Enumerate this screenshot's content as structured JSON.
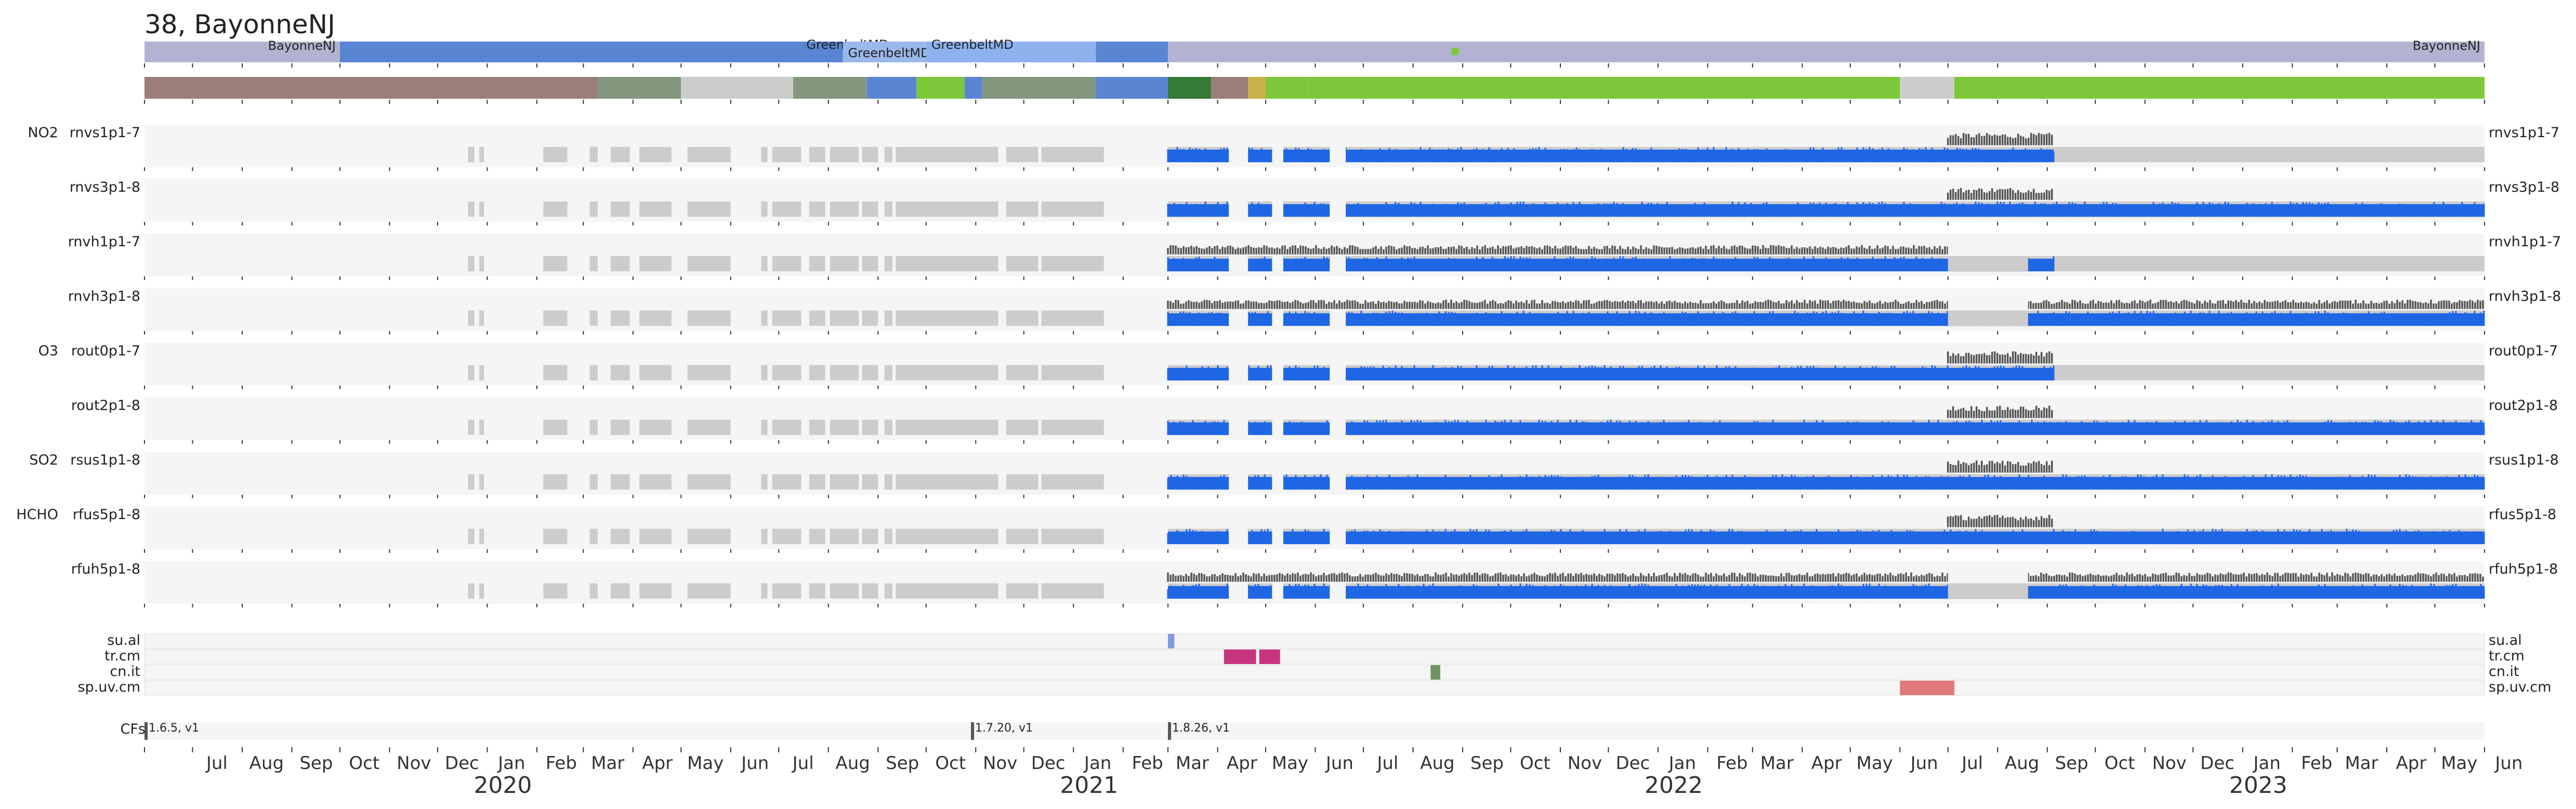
{
  "title": "38, BayonneNJ",
  "colors": {
    "panel_bg": "#f5f5f5",
    "nodata": "#cccccc",
    "blue_data": "#1f66e5",
    "dark_data": "#555555",
    "tick": "#333333"
  },
  "chart_data": {
    "type": "timeline",
    "title": "38, BayonneNJ",
    "x_range": [
      "2019-06-01",
      "2023-06-01"
    ],
    "location_track": {
      "segments": [
        {
          "start": "2019-06-01",
          "end": "2019-10-01",
          "label": "BayonneNJ",
          "color": "#b3b3d1"
        },
        {
          "start": "2019-10-01",
          "end": "2020-07-15",
          "label": "",
          "color": "#5a85d3"
        },
        {
          "start": "2020-07-15",
          "end": "2020-08-10",
          "label": "GreenbeltMD",
          "color": "#5a85d3"
        },
        {
          "start": "2020-08-10",
          "end": "2020-10-01",
          "label": "GreenbeltMD",
          "color": "#9ab8ea"
        },
        {
          "start": "2020-10-01",
          "end": "2021-01-15",
          "label": "GreenbeltMD",
          "color": "#8db2ee"
        },
        {
          "start": "2021-01-15",
          "end": "2021-03-01",
          "label": "",
          "color": "#5a85d3"
        },
        {
          "start": "2021-03-01",
          "end": "2023-06-01",
          "label": "BayonneNJ",
          "color": "#b3b3d1"
        }
      ]
    },
    "status_track": {
      "segments": [
        {
          "start": "2019-06-01",
          "end": "2020-03-10",
          "color": "#9b7e7a"
        },
        {
          "start": "2020-03-10",
          "end": "2020-05-01",
          "color": "#83987e"
        },
        {
          "start": "2020-05-01",
          "end": "2020-07-10",
          "color": "#cccccc"
        },
        {
          "start": "2020-07-10",
          "end": "2020-08-25",
          "color": "#83987e"
        },
        {
          "start": "2020-08-25",
          "end": "2020-09-25",
          "color": "#5a85d3"
        },
        {
          "start": "2020-09-25",
          "end": "2020-10-25",
          "color": "#7dc83a"
        },
        {
          "start": "2020-10-25",
          "end": "2020-11-05",
          "color": "#5a85d3"
        },
        {
          "start": "2020-11-05",
          "end": "2021-01-15",
          "color": "#83987e"
        },
        {
          "start": "2021-01-15",
          "end": "2021-03-01",
          "color": "#5a85d3"
        },
        {
          "start": "2021-03-01",
          "end": "2021-03-28",
          "color": "#357a37"
        },
        {
          "start": "2021-03-28",
          "end": "2021-04-20",
          "color": "#9b7e7a"
        },
        {
          "start": "2021-04-20",
          "end": "2021-05-01",
          "color": "#c9b04a"
        },
        {
          "start": "2021-05-01",
          "end": "2021-05-28",
          "color": "#7dc83a"
        },
        {
          "start": "2021-05-28",
          "end": "2022-06-01",
          "color": "#7dc83a"
        },
        {
          "start": "2022-06-01",
          "end": "2022-07-05",
          "color": "#cccccc"
        },
        {
          "start": "2022-07-05",
          "end": "2023-06-01",
          "color": "#7dc83a"
        }
      ]
    },
    "products": [
      {
        "group": "NO2",
        "name": "rnvs1p1-7",
        "data_end": "2022-09-05",
        "nodata_end": "2023-06-01",
        "upper_from": "2022-07-01",
        "upper_to": "2022-09-05",
        "type": "standard"
      },
      {
        "group": "",
        "name": "rnvs3p1-8",
        "data_end": "2023-06-01",
        "upper_from": "2022-07-01",
        "upper_to": "2022-09-05",
        "type": "standard"
      },
      {
        "group": "",
        "name": "rnvh1p1-7",
        "data_end": "2022-09-05",
        "upper_from": "2021-03-01",
        "upper_to": "2022-07-01",
        "type": "hcho_style",
        "gap_from": "2022-07-01",
        "gap_to": "2022-08-20"
      },
      {
        "group": "",
        "name": "rnvh3p1-8",
        "data_end": "2023-06-01",
        "upper_from": "2021-03-01",
        "upper_to": "2023-06-01",
        "type": "hcho_style",
        "gap_from": "2022-07-01",
        "gap_to": "2022-08-20"
      },
      {
        "group": "O3",
        "name": "rout0p1-7",
        "data_end": "2022-09-05",
        "upper_from": "2022-07-01",
        "upper_to": "2022-09-05",
        "type": "standard"
      },
      {
        "group": "",
        "name": "rout2p1-8",
        "data_end": "2023-06-01",
        "upper_from": "2022-07-01",
        "upper_to": "2022-09-05",
        "type": "standard"
      },
      {
        "group": "SO2",
        "name": "rsus1p1-8",
        "data_end": "2023-06-01",
        "upper_from": "2022-07-01",
        "upper_to": "2022-09-05",
        "type": "standard"
      },
      {
        "group": "HCHO",
        "name": "rfus5p1-8",
        "data_end": "2023-06-01",
        "upper_from": "2022-07-01",
        "upper_to": "2022-09-05",
        "type": "standard"
      },
      {
        "group": "",
        "name": "rfuh5p1-8",
        "data_end": "2023-06-01",
        "upper_from": "2021-03-01",
        "upper_to": "2023-06-01",
        "type": "hcho_style",
        "gap_from": "2022-07-01",
        "gap_to": "2022-08-20"
      }
    ],
    "flag_tracks": [
      {
        "name": "su.al",
        "marks": [
          {
            "start": "2021-03-01",
            "end": "2021-03-05",
            "color": "#7f9be0"
          }
        ]
      },
      {
        "name": "tr.cm",
        "marks": [
          {
            "start": "2021-04-05",
            "end": "2021-04-25",
            "color": "#c7357f"
          },
          {
            "start": "2021-04-27",
            "end": "2021-05-10",
            "color": "#c7357f"
          }
        ]
      },
      {
        "name": "cn.it",
        "marks": [
          {
            "start": "2021-08-12",
            "end": "2021-08-18",
            "color": "#6e9464"
          }
        ]
      },
      {
        "name": "sp.uv.cm",
        "marks": [
          {
            "start": "2022-06-01",
            "end": "2022-07-05",
            "color": "#e07a7a"
          }
        ]
      }
    ],
    "cfs": [
      {
        "date": "2019-06-01",
        "label": "1.6.5, v1"
      },
      {
        "date": "2020-10-29",
        "label": "1.7.20, v1"
      },
      {
        "date": "2021-03-01",
        "label": "1.8.26, v1"
      }
    ],
    "cfs_label": "CFs",
    "x_ticks": [
      {
        "date": "2019-06-01",
        "label": ""
      },
      {
        "date": "2019-07-01",
        "label": "Jul"
      },
      {
        "date": "2019-08-01",
        "label": "Aug"
      },
      {
        "date": "2019-09-01",
        "label": "Sep"
      },
      {
        "date": "2019-10-01",
        "label": "Oct"
      },
      {
        "date": "2019-11-01",
        "label": "Nov"
      },
      {
        "date": "2019-12-01",
        "label": "Dec"
      },
      {
        "date": "2020-01-01",
        "label": "Jan"
      },
      {
        "date": "2020-02-01",
        "label": "Feb"
      },
      {
        "date": "2020-03-01",
        "label": "Mar"
      },
      {
        "date": "2020-04-01",
        "label": "Apr"
      },
      {
        "date": "2020-05-01",
        "label": "May"
      },
      {
        "date": "2020-06-01",
        "label": "Jun"
      },
      {
        "date": "2020-07-01",
        "label": "Jul"
      },
      {
        "date": "2020-08-01",
        "label": "Aug"
      },
      {
        "date": "2020-09-01",
        "label": "Sep"
      },
      {
        "date": "2020-10-01",
        "label": "Oct"
      },
      {
        "date": "2020-11-01",
        "label": "Nov"
      },
      {
        "date": "2020-12-01",
        "label": "Dec"
      },
      {
        "date": "2021-01-01",
        "label": "Jan"
      },
      {
        "date": "2021-02-01",
        "label": "Feb"
      },
      {
        "date": "2021-03-01",
        "label": "Mar"
      },
      {
        "date": "2021-04-01",
        "label": "Apr"
      },
      {
        "date": "2021-05-01",
        "label": "May"
      },
      {
        "date": "2021-06-01",
        "label": "Jun"
      },
      {
        "date": "2021-07-01",
        "label": "Jul"
      },
      {
        "date": "2021-08-01",
        "label": "Aug"
      },
      {
        "date": "2021-09-01",
        "label": "Sep"
      },
      {
        "date": "2021-10-01",
        "label": "Oct"
      },
      {
        "date": "2021-11-01",
        "label": "Nov"
      },
      {
        "date": "2021-12-01",
        "label": "Dec"
      },
      {
        "date": "2022-01-01",
        "label": "Jan"
      },
      {
        "date": "2022-02-01",
        "label": "Feb"
      },
      {
        "date": "2022-03-01",
        "label": "Mar"
      },
      {
        "date": "2022-04-01",
        "label": "Apr"
      },
      {
        "date": "2022-05-01",
        "label": "May"
      },
      {
        "date": "2022-06-01",
        "label": "Jun"
      },
      {
        "date": "2022-07-01",
        "label": "Jul"
      },
      {
        "date": "2022-08-01",
        "label": "Aug"
      },
      {
        "date": "2022-09-01",
        "label": "Sep"
      },
      {
        "date": "2022-10-01",
        "label": "Oct"
      },
      {
        "date": "2022-11-01",
        "label": "Nov"
      },
      {
        "date": "2022-12-01",
        "label": "Dec"
      },
      {
        "date": "2023-01-01",
        "label": "Jan"
      },
      {
        "date": "2023-02-01",
        "label": "Feb"
      },
      {
        "date": "2023-03-01",
        "label": "Mar"
      },
      {
        "date": "2023-04-01",
        "label": "Apr"
      },
      {
        "date": "2023-05-01",
        "label": "May"
      },
      {
        "date": "2023-06-01",
        "label": "Jun"
      }
    ],
    "year_labels": [
      {
        "date": "2020-01-01",
        "label": "2020"
      },
      {
        "date": "2021-01-01",
        "label": "2021"
      },
      {
        "date": "2022-01-01",
        "label": "2022"
      },
      {
        "date": "2023-01-01",
        "label": "2023"
      }
    ]
  }
}
